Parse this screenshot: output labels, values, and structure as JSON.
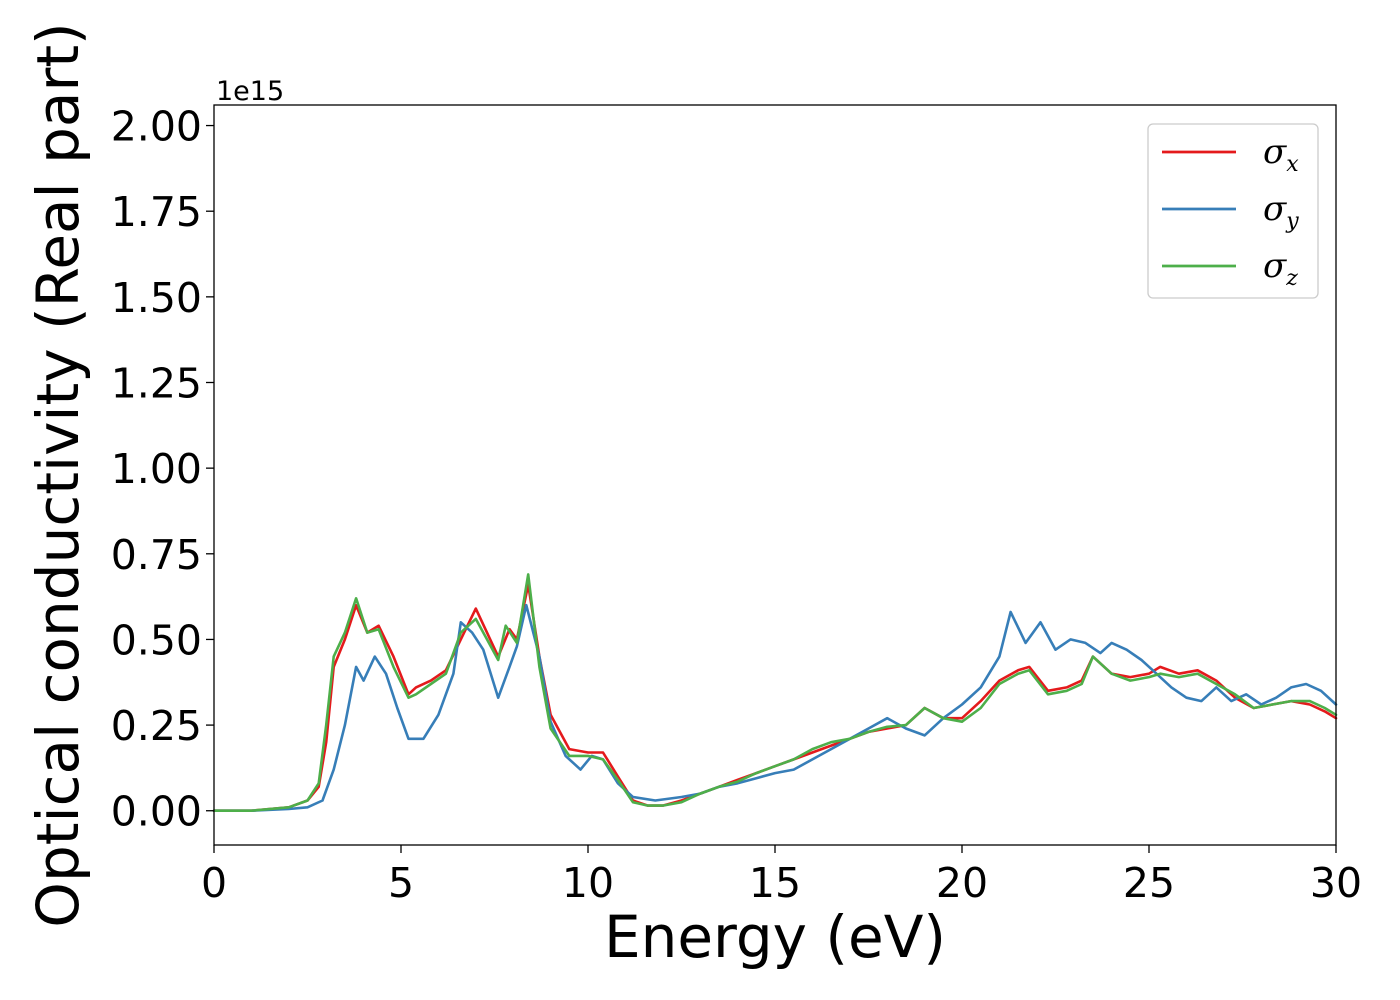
{
  "chart_data": {
    "type": "line",
    "xlabel": "Energy (eV)",
    "ylabel": "Optical conductivity (Real part)",
    "y_offset_label": "1e15",
    "xlim": [
      0,
      30
    ],
    "ylim": [
      -0.1,
      2.06
    ],
    "x_ticks": [
      0,
      5,
      10,
      15,
      20,
      25,
      30
    ],
    "x_tick_labels": [
      "0",
      "5",
      "10",
      "15",
      "20",
      "25",
      "30"
    ],
    "y_ticks": [
      0.0,
      0.25,
      0.5,
      0.75,
      1.0,
      1.25,
      1.5,
      1.75,
      2.0
    ],
    "y_tick_labels": [
      "0.00",
      "0.25",
      "0.50",
      "0.75",
      "1.00",
      "1.25",
      "1.50",
      "1.75",
      "2.00"
    ],
    "grid": false,
    "legend_position": "top-right",
    "series": [
      {
        "name": "σx",
        "legend_base": "σ",
        "legend_sub": "x",
        "color": "#e41a1c",
        "points": [
          [
            0,
            0
          ],
          [
            1,
            0
          ],
          [
            2,
            0.01
          ],
          [
            2.5,
            0.03
          ],
          [
            2.8,
            0.07
          ],
          [
            3,
            0.2
          ],
          [
            3.2,
            0.42
          ],
          [
            3.5,
            0.5
          ],
          [
            3.8,
            0.6
          ],
          [
            4.1,
            0.52
          ],
          [
            4.4,
            0.54
          ],
          [
            4.8,
            0.45
          ],
          [
            5.2,
            0.34
          ],
          [
            5.4,
            0.36
          ],
          [
            5.8,
            0.38
          ],
          [
            6.2,
            0.41
          ],
          [
            6.6,
            0.5
          ],
          [
            7.0,
            0.59
          ],
          [
            7.3,
            0.52
          ],
          [
            7.6,
            0.45
          ],
          [
            7.9,
            0.53
          ],
          [
            8.1,
            0.5
          ],
          [
            8.4,
            0.66
          ],
          [
            8.7,
            0.45
          ],
          [
            9.0,
            0.28
          ],
          [
            9.5,
            0.18
          ],
          [
            10.0,
            0.17
          ],
          [
            10.4,
            0.17
          ],
          [
            10.8,
            0.1
          ],
          [
            11.2,
            0.03
          ],
          [
            11.6,
            0.015
          ],
          [
            12.0,
            0.015
          ],
          [
            12.5,
            0.03
          ],
          [
            13,
            0.05
          ],
          [
            13.5,
            0.07
          ],
          [
            14,
            0.09
          ],
          [
            14.5,
            0.11
          ],
          [
            15,
            0.13
          ],
          [
            15.5,
            0.15
          ],
          [
            16,
            0.17
          ],
          [
            16.5,
            0.19
          ],
          [
            17,
            0.21
          ],
          [
            17.5,
            0.23
          ],
          [
            18,
            0.24
          ],
          [
            18.5,
            0.25
          ],
          [
            19,
            0.3
          ],
          [
            19.5,
            0.27
          ],
          [
            20,
            0.27
          ],
          [
            20.5,
            0.32
          ],
          [
            21,
            0.38
          ],
          [
            21.5,
            0.41
          ],
          [
            21.8,
            0.42
          ],
          [
            22.3,
            0.35
          ],
          [
            22.8,
            0.36
          ],
          [
            23.2,
            0.38
          ],
          [
            23.5,
            0.45
          ],
          [
            24,
            0.4
          ],
          [
            24.5,
            0.39
          ],
          [
            25,
            0.4
          ],
          [
            25.3,
            0.42
          ],
          [
            25.8,
            0.4
          ],
          [
            26.3,
            0.41
          ],
          [
            26.8,
            0.38
          ],
          [
            27.3,
            0.33
          ],
          [
            27.8,
            0.3
          ],
          [
            28.3,
            0.31
          ],
          [
            28.8,
            0.32
          ],
          [
            29.3,
            0.31
          ],
          [
            29.7,
            0.29
          ],
          [
            30,
            0.27
          ]
        ]
      },
      {
        "name": "σy",
        "legend_base": "σ",
        "legend_sub": "y",
        "color": "#377eb8",
        "points": [
          [
            0,
            0
          ],
          [
            1,
            0
          ],
          [
            2,
            0.005
          ],
          [
            2.5,
            0.01
          ],
          [
            2.9,
            0.03
          ],
          [
            3.2,
            0.12
          ],
          [
            3.5,
            0.25
          ],
          [
            3.8,
            0.42
          ],
          [
            4.0,
            0.38
          ],
          [
            4.3,
            0.45
          ],
          [
            4.6,
            0.4
          ],
          [
            4.9,
            0.3
          ],
          [
            5.2,
            0.21
          ],
          [
            5.6,
            0.21
          ],
          [
            6.0,
            0.28
          ],
          [
            6.4,
            0.4
          ],
          [
            6.6,
            0.55
          ],
          [
            6.9,
            0.52
          ],
          [
            7.2,
            0.47
          ],
          [
            7.6,
            0.33
          ],
          [
            7.9,
            0.42
          ],
          [
            8.1,
            0.48
          ],
          [
            8.35,
            0.6
          ],
          [
            8.7,
            0.45
          ],
          [
            9.0,
            0.26
          ],
          [
            9.4,
            0.16
          ],
          [
            9.8,
            0.12
          ],
          [
            10.1,
            0.16
          ],
          [
            10.4,
            0.15
          ],
          [
            10.8,
            0.08
          ],
          [
            11.2,
            0.04
          ],
          [
            11.8,
            0.03
          ],
          [
            12.5,
            0.04
          ],
          [
            13,
            0.05
          ],
          [
            13.5,
            0.07
          ],
          [
            14,
            0.08
          ],
          [
            14.5,
            0.095
          ],
          [
            15,
            0.11
          ],
          [
            15.5,
            0.12
          ],
          [
            16,
            0.15
          ],
          [
            16.5,
            0.18
          ],
          [
            17,
            0.21
          ],
          [
            17.5,
            0.24
          ],
          [
            18,
            0.27
          ],
          [
            18.5,
            0.24
          ],
          [
            19,
            0.22
          ],
          [
            19.5,
            0.27
          ],
          [
            20,
            0.31
          ],
          [
            20.5,
            0.36
          ],
          [
            21,
            0.45
          ],
          [
            21.3,
            0.58
          ],
          [
            21.7,
            0.49
          ],
          [
            22.1,
            0.55
          ],
          [
            22.5,
            0.47
          ],
          [
            22.9,
            0.5
          ],
          [
            23.3,
            0.49
          ],
          [
            23.7,
            0.46
          ],
          [
            24,
            0.49
          ],
          [
            24.4,
            0.47
          ],
          [
            24.8,
            0.44
          ],
          [
            25.2,
            0.4
          ],
          [
            25.6,
            0.36
          ],
          [
            26,
            0.33
          ],
          [
            26.4,
            0.32
          ],
          [
            26.8,
            0.36
          ],
          [
            27.2,
            0.32
          ],
          [
            27.6,
            0.34
          ],
          [
            28,
            0.31
          ],
          [
            28.4,
            0.33
          ],
          [
            28.8,
            0.36
          ],
          [
            29.2,
            0.37
          ],
          [
            29.6,
            0.35
          ],
          [
            30,
            0.31
          ]
        ]
      },
      {
        "name": "σz",
        "legend_base": "σ",
        "legend_sub": "z",
        "color": "#4daf4a",
        "points": [
          [
            0,
            0
          ],
          [
            1,
            0
          ],
          [
            2,
            0.01
          ],
          [
            2.5,
            0.03
          ],
          [
            2.8,
            0.08
          ],
          [
            3.0,
            0.25
          ],
          [
            3.2,
            0.45
          ],
          [
            3.5,
            0.52
          ],
          [
            3.8,
            0.62
          ],
          [
            4.1,
            0.52
          ],
          [
            4.4,
            0.53
          ],
          [
            4.8,
            0.42
          ],
          [
            5.2,
            0.33
          ],
          [
            5.4,
            0.34
          ],
          [
            5.8,
            0.37
          ],
          [
            6.2,
            0.4
          ],
          [
            6.6,
            0.52
          ],
          [
            7.0,
            0.56
          ],
          [
            7.3,
            0.5
          ],
          [
            7.6,
            0.44
          ],
          [
            7.8,
            0.54
          ],
          [
            8.1,
            0.49
          ],
          [
            8.4,
            0.69
          ],
          [
            8.7,
            0.42
          ],
          [
            9.0,
            0.24
          ],
          [
            9.5,
            0.16
          ],
          [
            10.0,
            0.16
          ],
          [
            10.4,
            0.15
          ],
          [
            10.8,
            0.09
          ],
          [
            11.2,
            0.025
          ],
          [
            11.6,
            0.015
          ],
          [
            12.0,
            0.015
          ],
          [
            12.5,
            0.025
          ],
          [
            13,
            0.05
          ],
          [
            13.5,
            0.07
          ],
          [
            14,
            0.085
          ],
          [
            14.5,
            0.11
          ],
          [
            15,
            0.13
          ],
          [
            15.5,
            0.15
          ],
          [
            16,
            0.18
          ],
          [
            16.5,
            0.2
          ],
          [
            17,
            0.21
          ],
          [
            17.5,
            0.23
          ],
          [
            18,
            0.245
          ],
          [
            18.5,
            0.25
          ],
          [
            19,
            0.3
          ],
          [
            19.5,
            0.27
          ],
          [
            20,
            0.26
          ],
          [
            20.5,
            0.3
          ],
          [
            21,
            0.37
          ],
          [
            21.5,
            0.4
          ],
          [
            21.8,
            0.41
          ],
          [
            22.3,
            0.34
          ],
          [
            22.8,
            0.35
          ],
          [
            23.2,
            0.37
          ],
          [
            23.5,
            0.45
          ],
          [
            24,
            0.4
          ],
          [
            24.5,
            0.38
          ],
          [
            25,
            0.39
          ],
          [
            25.3,
            0.4
          ],
          [
            25.8,
            0.39
          ],
          [
            26.3,
            0.4
          ],
          [
            26.8,
            0.37
          ],
          [
            27.3,
            0.34
          ],
          [
            27.8,
            0.3
          ],
          [
            28.3,
            0.31
          ],
          [
            28.8,
            0.32
          ],
          [
            29.3,
            0.32
          ],
          [
            29.7,
            0.3
          ],
          [
            30,
            0.28
          ]
        ]
      }
    ]
  }
}
